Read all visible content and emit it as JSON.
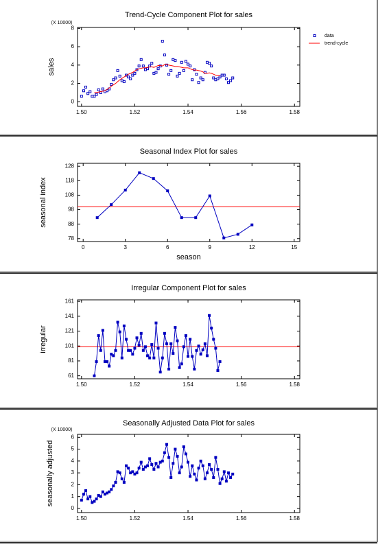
{
  "chart_data": [
    {
      "type": "scatter",
      "title": "Trend-Cycle Component Plot for sales",
      "ylabel": "sales",
      "y_multiplier": "(X 10000)",
      "xlim": [
        1.4985,
        1.582
      ],
      "xticks": [
        {
          "value": 1.5,
          "label": "1.50"
        },
        {
          "value": 1.52,
          "label": "1.52"
        },
        {
          "value": 1.54,
          "label": "1.54"
        },
        {
          "value": 1.56,
          "label": "1.56"
        },
        {
          "value": 1.58,
          "label": "1.58"
        }
      ],
      "ylim": [
        -0.5,
        8.1
      ],
      "yticks": [
        0,
        2,
        4,
        6,
        8
      ],
      "legend": "outside-right",
      "series": [
        {
          "name": "data",
          "color": "#0000c0",
          "style": "markers",
          "x": [
            1.5,
            1.5008,
            1.5016,
            1.5024,
            1.5032,
            1.504,
            1.5048,
            1.5056,
            1.5064,
            1.5072,
            1.508,
            1.5088,
            1.5096,
            1.5104,
            1.5112,
            1.512,
            1.5128,
            1.5136,
            1.5144,
            1.5152,
            1.516,
            1.5168,
            1.5176,
            1.5184,
            1.5192,
            1.52,
            1.5208,
            1.5216,
            1.5224,
            1.5232,
            1.524,
            1.5248,
            1.5256,
            1.5264,
            1.5272,
            1.528,
            1.5288,
            1.5296,
            1.5304,
            1.5312,
            1.532,
            1.5328,
            1.5336,
            1.5344,
            1.5352,
            1.536,
            1.5368,
            1.5376,
            1.5384,
            1.5392,
            1.54,
            1.5408,
            1.5416,
            1.5424,
            1.5432,
            1.544,
            1.5448,
            1.5456,
            1.5464,
            1.5472,
            1.548,
            1.5488,
            1.5496,
            1.5504,
            1.5512,
            1.552,
            1.5528,
            1.5536,
            1.5544,
            1.5552,
            1.556,
            1.5568
          ],
          "values": [
            0.6,
            1.2,
            1.6,
            0.9,
            1.1,
            0.6,
            0.6,
            0.8,
            1.3,
            1.0,
            1.4,
            1.1,
            1.2,
            1.4,
            1.9,
            2.4,
            2.6,
            3.4,
            2.8,
            2.3,
            2.2,
            2.9,
            2.7,
            2.5,
            2.9,
            3.1,
            3.5,
            3.9,
            4.6,
            3.9,
            3.5,
            3.6,
            3.9,
            4.2,
            3.1,
            3.2,
            3.6,
            3.9,
            6.6,
            5.1,
            4.0,
            3.0,
            3.4,
            4.6,
            4.5,
            2.8,
            3.1,
            4.3,
            3.4,
            4.4,
            4.1,
            3.9,
            2.4,
            3.5,
            3.0,
            2.1,
            2.6,
            2.4,
            3.2,
            4.3,
            4.2,
            3.9,
            2.6,
            2.4,
            2.5,
            2.7,
            2.9,
            2.9,
            2.5,
            2.1,
            2.3,
            2.6
          ]
        },
        {
          "name": "trend-cycle",
          "color": "#ff0000",
          "style": "line",
          "x": [
            1.5048,
            1.5056,
            1.5064,
            1.5072,
            1.508,
            1.5088,
            1.5096,
            1.5104,
            1.5112,
            1.512,
            1.5128,
            1.5136,
            1.5144,
            1.5152,
            1.516,
            1.5168,
            1.5176,
            1.5184,
            1.5192,
            1.52,
            1.5208,
            1.5216,
            1.5224,
            1.5232,
            1.524,
            1.5248,
            1.5256,
            1.5264,
            1.5272,
            1.528,
            1.5288,
            1.5296,
            1.5304,
            1.5312,
            1.532,
            1.5328,
            1.5336,
            1.5344,
            1.5352,
            1.536,
            1.5368,
            1.5376,
            1.5384,
            1.5392,
            1.54,
            1.5408,
            1.5416,
            1.5424,
            1.5432,
            1.544,
            1.5448,
            1.5456,
            1.5464,
            1.5472,
            1.548,
            1.5488,
            1.5496,
            1.5504,
            1.5512,
            1.552
          ],
          "values": [
            1.0,
            1.0,
            1.05,
            1.1,
            1.15,
            1.2,
            1.35,
            1.5,
            1.7,
            1.85,
            2.0,
            2.2,
            2.4,
            2.55,
            2.7,
            2.85,
            3.0,
            3.1,
            3.2,
            3.35,
            3.5,
            3.6,
            3.65,
            3.7,
            3.7,
            3.75,
            3.8,
            3.8,
            3.75,
            3.85,
            3.95,
            3.95,
            3.9,
            4.05,
            4.05,
            4.0,
            3.95,
            3.9,
            3.85,
            3.85,
            3.8,
            3.75,
            3.7,
            3.7,
            3.7,
            3.6,
            3.5,
            3.45,
            3.45,
            3.4,
            3.35,
            3.25,
            3.1,
            3.1,
            3.15,
            3.1,
            3.0,
            2.9,
            2.85,
            2.85
          ]
        }
      ]
    },
    {
      "type": "line",
      "title": "Seasonal Index Plot for sales",
      "ylabel": "seasonal index",
      "xlabel": "season",
      "xlim": [
        -0.4,
        15.4
      ],
      "xticks": [
        0,
        3,
        6,
        9,
        12,
        15
      ],
      "ylim": [
        76,
        130
      ],
      "yticks": [
        78,
        88,
        98,
        108,
        118,
        128
      ],
      "reference_line": {
        "value": 100,
        "color": "#ff0000"
      },
      "series": [
        {
          "color": "#0000c0",
          "style": "line-markers",
          "x": [
            1,
            2,
            3,
            4,
            5,
            6,
            7,
            8,
            9,
            10,
            11,
            12
          ],
          "values": [
            92.5,
            101.5,
            111.5,
            123.5,
            119.5,
            111,
            92.5,
            92.5,
            107.5,
            78.5,
            81,
            87.5
          ]
        }
      ]
    },
    {
      "type": "line",
      "title": "Irregular Component Plot for sales",
      "ylabel": "irregular",
      "xlim": [
        1.4985,
        1.582
      ],
      "xticks": [
        {
          "value": 1.5,
          "label": "1.50"
        },
        {
          "value": 1.52,
          "label": "1.52"
        },
        {
          "value": 1.54,
          "label": "1.54"
        },
        {
          "value": 1.56,
          "label": "1.56"
        },
        {
          "value": 1.58,
          "label": "1.58"
        }
      ],
      "ylim": [
        57,
        163
      ],
      "yticks": [
        61,
        81,
        101,
        121,
        141,
        161
      ],
      "reference_line": {
        "value": 100,
        "color": "#ff0000"
      },
      "series": [
        {
          "color": "#0000c0",
          "style": "line-markers",
          "x": [
            1.5048,
            1.5056,
            1.5064,
            1.5072,
            1.508,
            1.5088,
            1.5096,
            1.5104,
            1.5112,
            1.512,
            1.5128,
            1.5136,
            1.5144,
            1.5152,
            1.516,
            1.5168,
            1.5176,
            1.5184,
            1.5192,
            1.52,
            1.5208,
            1.5216,
            1.5224,
            1.5232,
            1.524,
            1.5248,
            1.5256,
            1.5264,
            1.5272,
            1.528,
            1.5288,
            1.5296,
            1.5304,
            1.5312,
            1.532,
            1.5328,
            1.5336,
            1.5344,
            1.5352,
            1.536,
            1.5368,
            1.5376,
            1.5384,
            1.5392,
            1.54,
            1.5408,
            1.5416,
            1.5424,
            1.5432,
            1.544,
            1.5448,
            1.5456,
            1.5464,
            1.5472,
            1.548,
            1.5488,
            1.5496,
            1.5504,
            1.5512,
            1.552
          ],
          "values": [
            61,
            80,
            115,
            95,
            122,
            80,
            80,
            74,
            90,
            88,
            95,
            133,
            120,
            85,
            128,
            110,
            95,
            95,
            90,
            98,
            112,
            102,
            118,
            95,
            100,
            88,
            85,
            103,
            85,
            132,
            98,
            66,
            85,
            118,
            104,
            70,
            104,
            91,
            126,
            108,
            72,
            77,
            100,
            115,
            87,
            110,
            87,
            70,
            95,
            101,
            90,
            96,
            104,
            88,
            142,
            125,
            110,
            98,
            68,
            80
          ]
        }
      ]
    },
    {
      "type": "line",
      "title": "Seasonally Adjusted Data Plot for sales",
      "ylabel": "seasonally adjusted",
      "y_multiplier": "(X 10000)",
      "xlim": [
        1.4985,
        1.582
      ],
      "xticks": [
        {
          "value": 1.5,
          "label": "1.50"
        },
        {
          "value": 1.52,
          "label": "1.52"
        },
        {
          "value": 1.54,
          "label": "1.54"
        },
        {
          "value": 1.56,
          "label": "1.56"
        },
        {
          "value": 1.58,
          "label": "1.58"
        }
      ],
      "ylim": [
        -0.35,
        6.25
      ],
      "yticks": [
        0,
        1,
        2,
        3,
        4,
        5,
        6
      ],
      "series": [
        {
          "color": "#0000c0",
          "style": "line-markers",
          "x": [
            1.5,
            1.5008,
            1.5016,
            1.5024,
            1.5032,
            1.504,
            1.5048,
            1.5056,
            1.5064,
            1.5072,
            1.508,
            1.5088,
            1.5096,
            1.5104,
            1.5112,
            1.512,
            1.5128,
            1.5136,
            1.5144,
            1.5152,
            1.516,
            1.5168,
            1.5176,
            1.5184,
            1.5192,
            1.52,
            1.5208,
            1.5216,
            1.5224,
            1.5232,
            1.524,
            1.5248,
            1.5256,
            1.5264,
            1.5272,
            1.528,
            1.5288,
            1.5296,
            1.5304,
            1.5312,
            1.532,
            1.5328,
            1.5336,
            1.5344,
            1.5352,
            1.536,
            1.5368,
            1.5376,
            1.5384,
            1.5392,
            1.54,
            1.5408,
            1.5416,
            1.5424,
            1.5432,
            1.544,
            1.5448,
            1.5456,
            1.5464,
            1.5472,
            1.548,
            1.5488,
            1.5496,
            1.5504,
            1.5512,
            1.552,
            1.5528,
            1.5536,
            1.5544,
            1.5552,
            1.556,
            1.5568
          ],
          "values": [
            0.7,
            1.2,
            1.5,
            0.8,
            1.0,
            0.5,
            0.6,
            0.8,
            1.1,
            1.0,
            1.4,
            1.2,
            1.3,
            1.4,
            1.6,
            1.9,
            2.2,
            3.1,
            3.0,
            2.5,
            2.2,
            3.6,
            3.4,
            3.0,
            3.1,
            2.9,
            3.0,
            3.4,
            3.9,
            3.3,
            3.5,
            3.6,
            4.2,
            3.7,
            3.3,
            3.8,
            3.5,
            3.9,
            4.0,
            4.7,
            5.4,
            4.3,
            2.6,
            3.8,
            5.0,
            4.4,
            3.0,
            3.5,
            5.2,
            4.6,
            3.9,
            2.7,
            3.6,
            2.9,
            2.4,
            3.4,
            4.0,
            3.6,
            2.5,
            3.0,
            3.7,
            3.3,
            2.6,
            4.3,
            3.3,
            2.1,
            2.5,
            3.1,
            2.3,
            3.0,
            2.6,
            2.9
          ]
        }
      ]
    }
  ]
}
